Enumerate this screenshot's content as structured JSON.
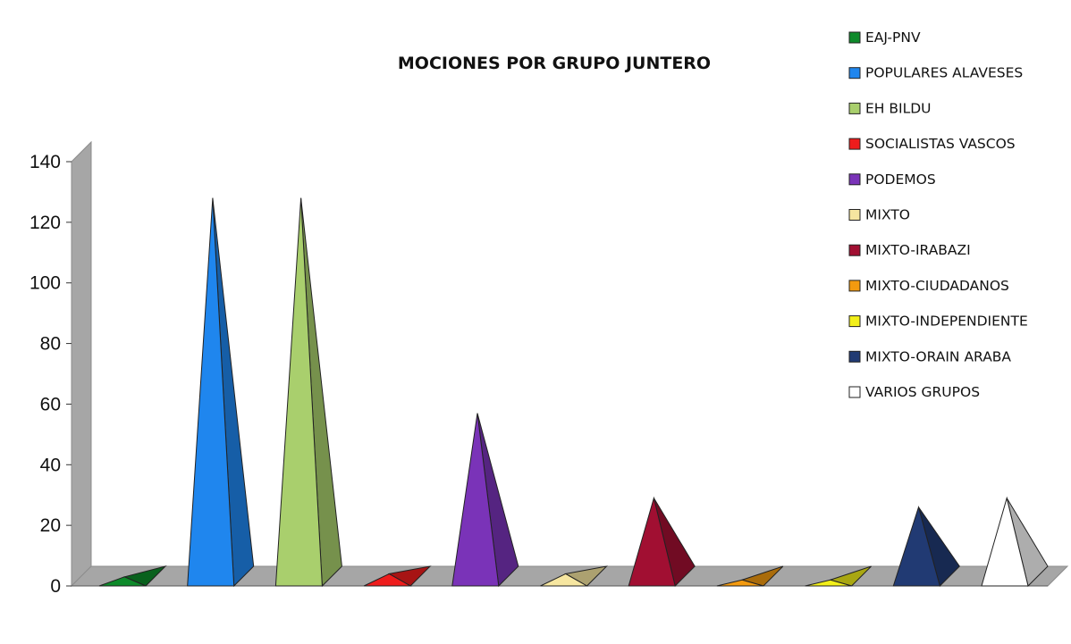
{
  "chart_data": {
    "type": "bar",
    "style": "3d-pyramid",
    "title": "MOCIONES POR GRUPO JUNTERO",
    "xlabel": "",
    "ylabel": "",
    "ylim": [
      0,
      140
    ],
    "yticks": [
      0,
      20,
      40,
      60,
      80,
      100,
      120,
      140
    ],
    "grid": false,
    "legend_position": "right",
    "categories": [
      "EAJ-PNV",
      "POPULARES ALAVESES",
      "EH BILDU",
      "SOCIALISTAS VASCOS",
      "PODEMOS",
      "MIXTO",
      "MIXTO-IRABAZI",
      "MIXTO-CIUDADANOS",
      "MIXTO-INDEPENDIENTE",
      "MIXTO-ORAIN ARABA",
      "VARIOS GRUPOS"
    ],
    "values": [
      3,
      128,
      128,
      4,
      57,
      4,
      29,
      2,
      2,
      26,
      29
    ],
    "colors": [
      "#0d8a2a",
      "#1f86ee",
      "#a9cf6d",
      "#ee1c1c",
      "#7a33b8",
      "#f6e6a0",
      "#a10f32",
      "#f39a0f",
      "#f2ef19",
      "#213a73",
      "#ffffff"
    ]
  }
}
